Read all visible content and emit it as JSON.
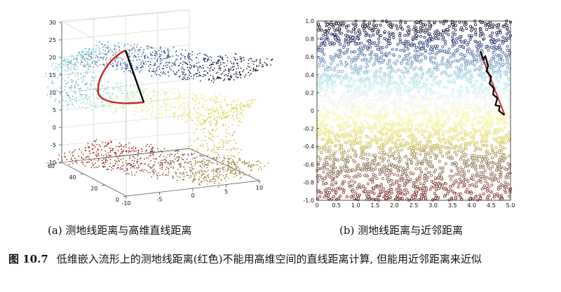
{
  "figure": {
    "label": "图 10.7",
    "caption": "低维嵌入流形上的测地线距离(红色)不能用高维空间的直线距离计算, 但能用近邻距离来近似"
  },
  "subcaptions": {
    "a": "(a) 测地线距离与高维直线距离",
    "b": "(b) 测地线距离与近邻距离"
  },
  "chart_data": [
    {
      "id": "a",
      "type": "scatter",
      "projection": "3d",
      "title": "",
      "description_of_marks": "Swiss-roll point cloud colored by position along the roll (black → blue → cyan → yellow → red/brown); red curve = geodesic path, black straight segment = high-dimensional straight-line distance",
      "z_ticks": [
        "-10",
        "-5",
        "0",
        "5",
        "10",
        "15",
        "20",
        "25",
        "30"
      ],
      "zlim": [
        -10,
        30
      ],
      "y_ticks": [
        "0",
        "20",
        "40",
        "60"
      ],
      "ylim": [
        0,
        60
      ],
      "x_ticks": [
        "-10",
        "-5",
        "0",
        "5",
        "10"
      ],
      "xlim": [
        -10,
        10
      ],
      "colors": {
        "roll_start": "#111111",
        "dark_blue": "#2c3d8f",
        "steel_blue": "#5f8fb0",
        "cyan": "#8fe0e6",
        "light_yellow": "#f1f18a",
        "yellow": "#d6cc3a",
        "olive": "#9a8a55",
        "brown": "#8a4a3c",
        "red": "#b02a22",
        "geodesic": "#c0291f",
        "straight_line": "#000000"
      }
    },
    {
      "id": "b",
      "type": "scatter",
      "title": "",
      "description_of_marks": "Unrolled 2-D embedding: horizontal color bands from black (top) through blue, cyan, white, yellow, olive to dark red (bottom); red line = geodesic, black zig-zag = nearest-neighbour path",
      "xlim": [
        0,
        5
      ],
      "ylim": [
        -1,
        1
      ],
      "x_ticks": [
        "0",
        "0.5",
        "1.0",
        "1.5",
        "2.0",
        "2.5",
        "3.0",
        "3.5",
        "4.0",
        "4.5",
        "5.0"
      ],
      "y_ticks": [
        "1.0",
        "0.8",
        "0.6",
        "0.4",
        "0.2",
        "0",
        "-0.2",
        "-0.4",
        "-0.6",
        "-0.8",
        "-1.0"
      ],
      "geodesic_segment": {
        "x": [
          4.25,
          4.85
        ],
        "y": [
          0.62,
          -0.05
        ]
      },
      "neighbor_path": {
        "x": [
          4.22,
          4.3,
          4.35,
          4.42,
          4.38,
          4.5,
          4.46,
          4.57,
          4.55,
          4.66,
          4.61,
          4.72,
          4.7,
          4.84
        ],
        "y": [
          0.66,
          0.57,
          0.61,
          0.5,
          0.44,
          0.38,
          0.3,
          0.25,
          0.18,
          0.14,
          0.06,
          0.05,
          0.0,
          -0.05
        ]
      },
      "colors": {
        "band_stops": [
          "#111111",
          "#2a3270",
          "#6b93b8",
          "#a8e2ea",
          "#f4f4f4",
          "#f6f690",
          "#dccf55",
          "#8f7d55",
          "#8a5a4a",
          "#7a1d1d"
        ],
        "geodesic": "#d0312a",
        "neighbor_path": "#000000"
      }
    }
  ]
}
